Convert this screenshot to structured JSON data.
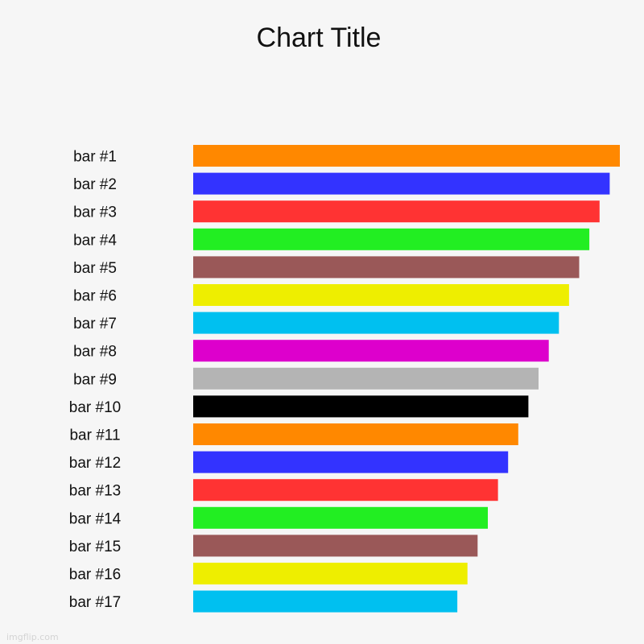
{
  "watermark": "imgflip.com",
  "chart_data": {
    "type": "bar",
    "orientation": "horizontal",
    "title": "Chart Title",
    "xlabel": "",
    "ylabel": "",
    "grid": false,
    "legend": "none",
    "xlim": [
      0,
      42
    ],
    "categories": [
      "bar #1",
      "bar #2",
      "bar #3",
      "bar #4",
      "bar #5",
      "bar #6",
      "bar #7",
      "bar #8",
      "bar #9",
      "bar #10",
      "bar #11",
      "bar #12",
      "bar #13",
      "bar #14",
      "bar #15",
      "bar #16",
      "bar #17"
    ],
    "values": [
      42,
      41,
      40,
      39,
      38,
      37,
      36,
      35,
      34,
      33,
      32,
      31,
      30,
      29,
      28,
      27,
      26
    ],
    "colors": [
      "#ff8800",
      "#3333ff",
      "#ff3333",
      "#22ee22",
      "#9a5858",
      "#eeee00",
      "#00c0f0",
      "#dd00cc",
      "#b4b4b4",
      "#000000",
      "#ff8800",
      "#3333ff",
      "#ff3333",
      "#22ee22",
      "#9a5858",
      "#eeee00",
      "#00c0f0"
    ]
  }
}
